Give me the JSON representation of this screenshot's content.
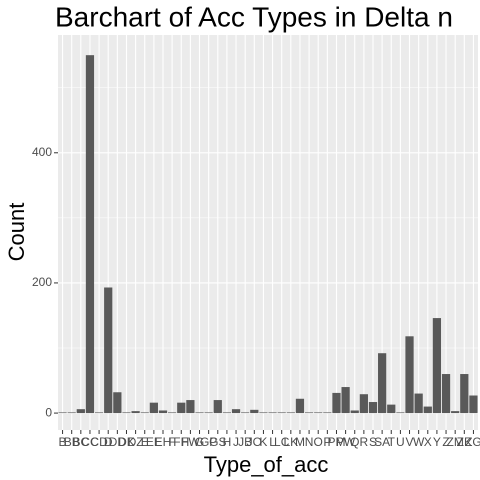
{
  "chart_data": {
    "type": "bar",
    "title": "Barchart of Acc Types in Delta n",
    "x_label": "Type_of_acc",
    "y_label": "Count",
    "categories": [
      "B",
      "BB",
      "BC",
      "CC",
      "CD",
      "D",
      "DD",
      "DK",
      "DZ",
      "E",
      "EE",
      "EH",
      "F",
      "FH",
      "FW",
      "G",
      "GP",
      "GS",
      "H",
      "J",
      "JB",
      "JO",
      "K",
      "L",
      "LC",
      "LK",
      "M",
      "N",
      "O",
      "P",
      "PM",
      "PW",
      "Q",
      "R",
      "S",
      "SA",
      "T",
      "U",
      "V",
      "W",
      "X",
      "Y",
      "Z",
      "ZM",
      "ZK",
      "ZG"
    ],
    "values": [
      1,
      1,
      6,
      550,
      1,
      193,
      32,
      1,
      3,
      1,
      16,
      4,
      1,
      16,
      20,
      1,
      1,
      20,
      1,
      6,
      1,
      5,
      1,
      1,
      1,
      1,
      22,
      1,
      1,
      1,
      31,
      40,
      4,
      29,
      17,
      92,
      13,
      1,
      118,
      30,
      10,
      146,
      60,
      3,
      60,
      27
    ],
    "color": "#595959",
    "ylim": [
      -26,
      581
    ],
    "yticks": [
      0,
      200,
      400
    ],
    "grid": true
  }
}
